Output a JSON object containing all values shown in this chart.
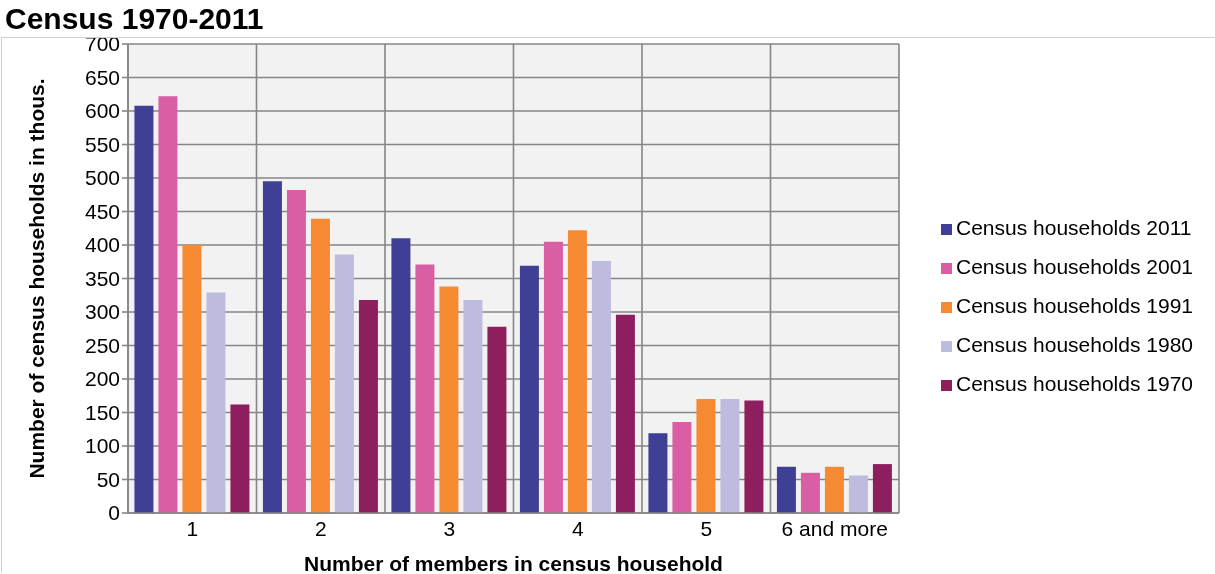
{
  "chart_data": {
    "type": "bar",
    "title": "Census 1970-2011",
    "xlabel": "Number of members in census household",
    "ylabel": "Number of census households in thous.",
    "categories": [
      "1",
      "2",
      "3",
      "4",
      "5",
      "6 and more"
    ],
    "series": [
      {
        "name": "Census households 2011",
        "color": "#3f3f96",
        "values": [
          608,
          495,
          410,
          369,
          119,
          69
        ]
      },
      {
        "name": "Census households 2001",
        "color": "#d95ea3",
        "values": [
          622,
          482,
          371,
          405,
          136,
          60
        ]
      },
      {
        "name": "Census households 1991",
        "color": "#f68a33",
        "values": [
          400,
          439,
          338,
          422,
          170,
          69
        ]
      },
      {
        "name": "Census households 1980",
        "color": "#bebcde",
        "values": [
          329,
          386,
          318,
          376,
          170,
          56
        ]
      },
      {
        "name": "Census households 1970",
        "color": "#8e1f5e",
        "values": [
          162,
          318,
          278,
          296,
          168,
          73
        ]
      }
    ],
    "ylim": [
      0,
      700
    ],
    "yticks": [
      0,
      50,
      100,
      150,
      200,
      250,
      300,
      350,
      400,
      450,
      500,
      550,
      600,
      650,
      700
    ],
    "grid": true,
    "legend": "right"
  }
}
